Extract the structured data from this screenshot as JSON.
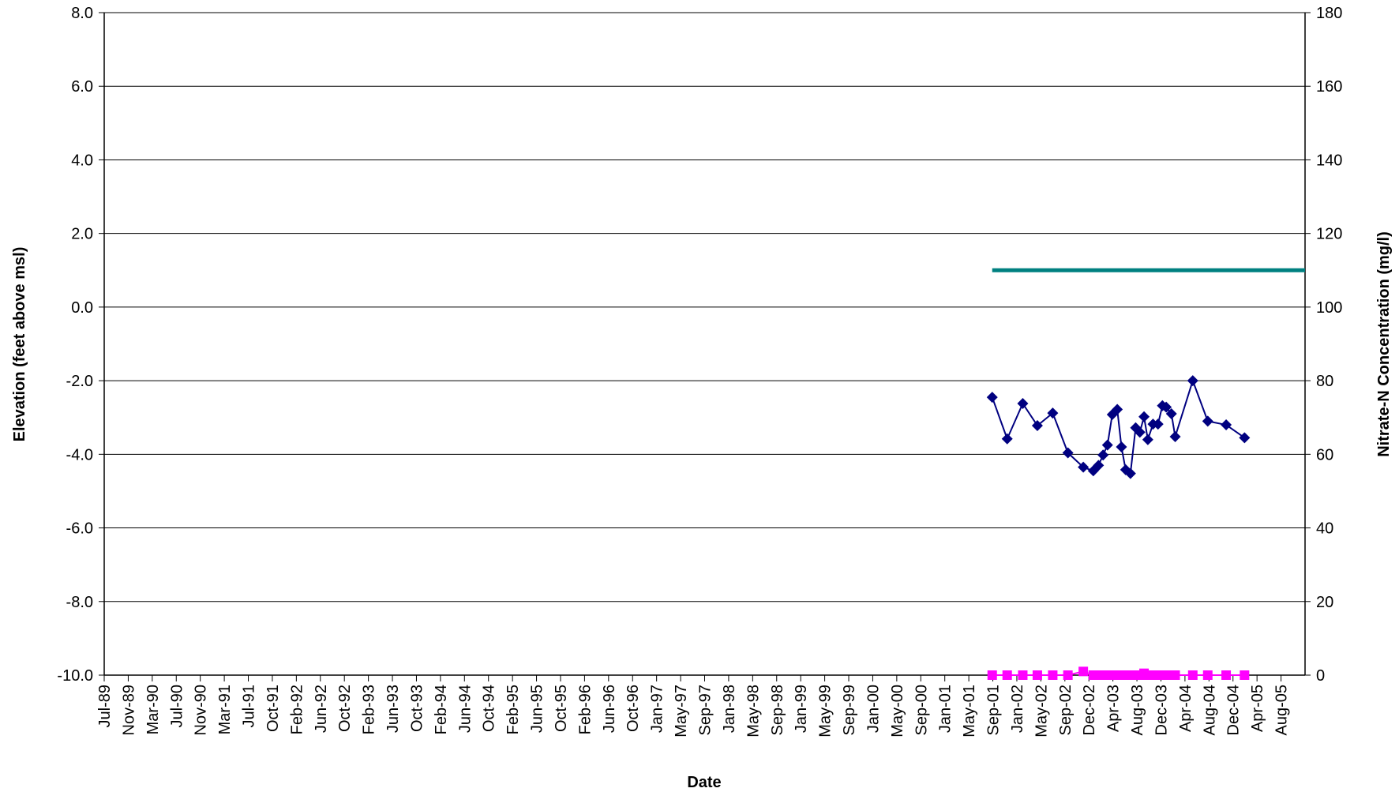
{
  "chart_data": {
    "type": "line",
    "title": "",
    "xlabel": "Date",
    "ylabel_left": "Elevation (feet above msl)",
    "ylabel_right": "Nitrate-N Concentration (mg/l)",
    "x_range": [
      "1989-07-01",
      "2005-12-15"
    ],
    "ylim_left": [
      -10,
      8
    ],
    "ylim_right": [
      0,
      180
    ],
    "y_ticks_left": [
      "8.0",
      "6.0",
      "4.0",
      "2.0",
      "0.0",
      "-2.0",
      "-4.0",
      "-6.0",
      "-8.0",
      "-10.0"
    ],
    "y_ticks_right": [
      "180",
      "160",
      "140",
      "120",
      "100",
      "80",
      "60",
      "40",
      "20",
      "0"
    ],
    "x_tick_labels": [
      "Jul-89",
      "Nov-89",
      "Mar-90",
      "Jul-90",
      "Nov-90",
      "Mar-91",
      "Jul-91",
      "Oct-91",
      "Feb-92",
      "Jun-92",
      "Oct-92",
      "Feb-93",
      "Jun-93",
      "Oct-93",
      "Feb-94",
      "Jun-94",
      "Oct-94",
      "Feb-95",
      "Jun-95",
      "Oct-95",
      "Feb-96",
      "Jun-96",
      "Oct-96",
      "Jan-97",
      "May-97",
      "Sep-97",
      "Jan-98",
      "May-98",
      "Sep-98",
      "Jan-99",
      "May-99",
      "Sep-99",
      "Jan-00",
      "May-00",
      "Sep-00",
      "Jan-01",
      "May-01",
      "Sep-01",
      "Jan-02",
      "May-02",
      "Sep-02",
      "Dec-02",
      "Apr-03",
      "Aug-03",
      "Dec-03",
      "Apr-04",
      "Aug-04",
      "Dec-04",
      "Apr-05",
      "Aug-05"
    ],
    "grid": true,
    "legend": "none",
    "series": [
      {
        "axis": "left",
        "color": "#000080",
        "marker": "diamond",
        "points": [
          [
            "2001-09-01",
            -2.45
          ],
          [
            "2001-11-15",
            -3.58
          ],
          [
            "2002-02-01",
            -2.62
          ],
          [
            "2002-04-15",
            -3.22
          ],
          [
            "2002-07-01",
            -2.88
          ],
          [
            "2002-09-15",
            -3.96
          ],
          [
            "2002-12-01",
            -4.35
          ],
          [
            "2003-01-20",
            -4.45
          ],
          [
            "2003-02-15",
            -4.3
          ],
          [
            "2003-03-10",
            -4.02
          ],
          [
            "2003-04-01",
            -3.75
          ],
          [
            "2003-04-25",
            -2.92
          ],
          [
            "2003-05-20",
            -2.78
          ],
          [
            "2003-06-10",
            -3.8
          ],
          [
            "2003-07-01",
            -4.42
          ],
          [
            "2003-07-25",
            -4.52
          ],
          [
            "2003-08-20",
            -3.28
          ],
          [
            "2003-09-10",
            -3.4
          ],
          [
            "2003-10-01",
            -2.98
          ],
          [
            "2003-10-20",
            -3.6
          ],
          [
            "2003-11-15",
            -3.18
          ],
          [
            "2003-12-10",
            -3.18
          ],
          [
            "2004-01-01",
            -2.68
          ],
          [
            "2004-01-20",
            -2.72
          ],
          [
            "2004-02-15",
            -2.9
          ],
          [
            "2004-03-05",
            -3.52
          ],
          [
            "2004-06-01",
            -2.0
          ],
          [
            "2004-08-15",
            -3.1
          ],
          [
            "2004-11-15",
            -3.2
          ],
          [
            "2005-02-15",
            -3.55
          ]
        ]
      },
      {
        "axis": "right",
        "color": "#FF00FF",
        "marker": "square",
        "points": [
          [
            "2001-09-01",
            0
          ],
          [
            "2001-11-15",
            0
          ],
          [
            "2002-02-01",
            0
          ],
          [
            "2002-04-15",
            0
          ],
          [
            "2002-07-01",
            0
          ],
          [
            "2002-09-15",
            0
          ],
          [
            "2002-12-01",
            1
          ],
          [
            "2003-01-20",
            0
          ],
          [
            "2003-02-15",
            0
          ],
          [
            "2003-03-10",
            0
          ],
          [
            "2003-04-01",
            0
          ],
          [
            "2003-04-25",
            0
          ],
          [
            "2003-05-20",
            0
          ],
          [
            "2003-06-10",
            0
          ],
          [
            "2003-07-01",
            0
          ],
          [
            "2003-07-25",
            0
          ],
          [
            "2003-08-20",
            0
          ],
          [
            "2003-09-10",
            0
          ],
          [
            "2003-10-01",
            0.5
          ],
          [
            "2003-10-20",
            0
          ],
          [
            "2003-11-15",
            0
          ],
          [
            "2003-12-10",
            0
          ],
          [
            "2004-01-01",
            0
          ],
          [
            "2004-01-20",
            0
          ],
          [
            "2004-02-15",
            0
          ],
          [
            "2004-03-05",
            0
          ],
          [
            "2004-06-01",
            0
          ],
          [
            "2004-08-15",
            0
          ],
          [
            "2004-11-15",
            0
          ],
          [
            "2005-02-15",
            0
          ]
        ]
      },
      {
        "axis": "right",
        "color": "#008080",
        "marker": "none",
        "line_width": 5,
        "points": [
          [
            "2001-09-01",
            110
          ],
          [
            "2005-12-15",
            110
          ]
        ]
      }
    ]
  }
}
